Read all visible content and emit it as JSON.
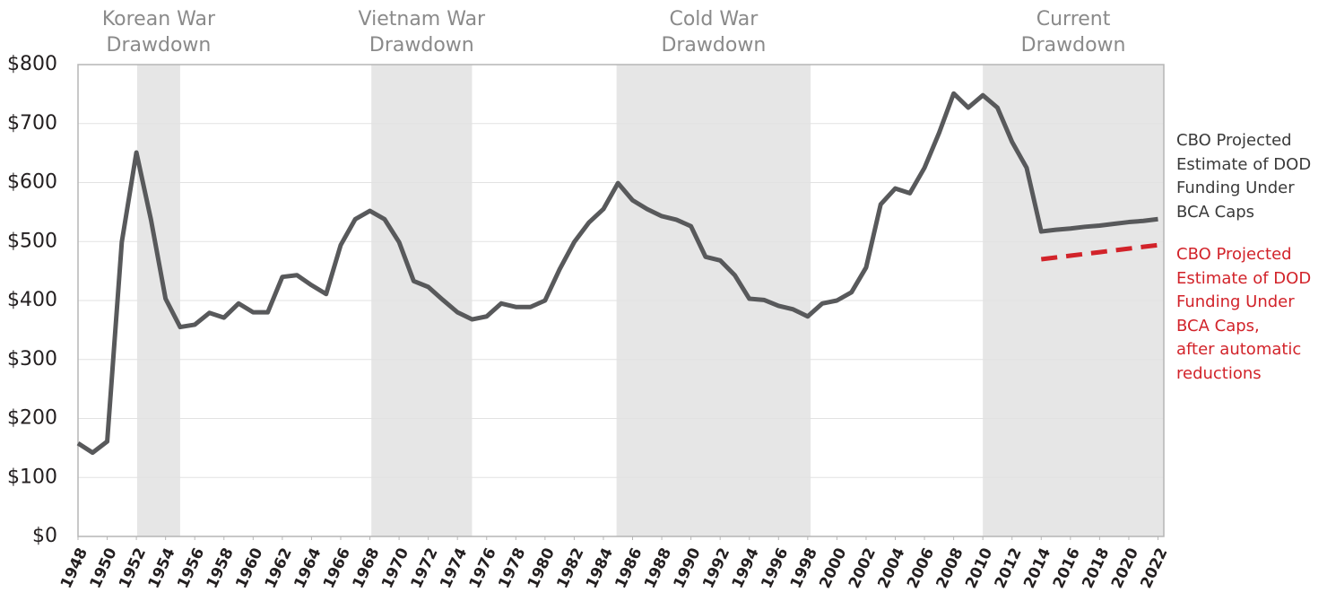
{
  "chart_data": {
    "type": "line",
    "xlim": [
      1948,
      2022.4
    ],
    "ylim": [
      0,
      800
    ],
    "yticks": [
      {
        "value": 0,
        "label": "$0"
      },
      {
        "value": 100,
        "label": "$100"
      },
      {
        "value": 200,
        "label": "$200"
      },
      {
        "value": 300,
        "label": "$300"
      },
      {
        "value": 400,
        "label": "$400"
      },
      {
        "value": 500,
        "label": "$500"
      },
      {
        "value": 600,
        "label": "$600"
      },
      {
        "value": 700,
        "label": "$700"
      },
      {
        "value": 800,
        "label": "$800"
      }
    ],
    "xticks": [
      1948,
      1950,
      1952,
      1954,
      1956,
      1958,
      1960,
      1962,
      1964,
      1966,
      1968,
      1970,
      1972,
      1974,
      1976,
      1978,
      1980,
      1982,
      1984,
      1986,
      1988,
      1990,
      1992,
      1994,
      1996,
      1998,
      2000,
      2002,
      2004,
      2006,
      2008,
      2010,
      2012,
      2014,
      2016,
      2018,
      2020,
      2022
    ],
    "grid": true,
    "shaded_regions": [
      {
        "label": "Korean War\nDrawdown",
        "range": [
          1952.05,
          1955
        ]
      },
      {
        "label": "Vietnam War\nDrawdown",
        "range": [
          1968.1,
          1975
        ]
      },
      {
        "label": "Cold War\nDrawdown",
        "range": [
          1984.9,
          1998.2
        ]
      },
      {
        "label": "Current\nDrawdown",
        "range": [
          2010,
          2022.4
        ]
      }
    ],
    "x": [
      1948,
      1949,
      1950,
      1951,
      1952,
      1953,
      1954,
      1955,
      1956,
      1957,
      1958,
      1959,
      1960,
      1961,
      1962,
      1963,
      1964,
      1965,
      1966,
      1967,
      1968,
      1969,
      1970,
      1971,
      1972,
      1973,
      1974,
      1975,
      1976,
      1977,
      1978,
      1979,
      1980,
      1981,
      1982,
      1983,
      1984,
      1985,
      1986,
      1987,
      1988,
      1989,
      1990,
      1991,
      1992,
      1993,
      1994,
      1995,
      1996,
      1997,
      1998,
      1999,
      2000,
      2001,
      2002,
      2003,
      2004,
      2005,
      2006,
      2007,
      2008,
      2009,
      2010,
      2011,
      2012,
      2013,
      2014,
      2015,
      2016,
      2017,
      2018,
      2019,
      2020,
      2021,
      2022
    ],
    "series": [
      {
        "name": "CBO Projected\nEstimate of DOD\nFunding Under\nBCA Caps",
        "color": "#58595b",
        "dashed": false,
        "values": [
          158,
          142,
          161,
          499,
          651,
          537,
          403,
          355,
          359,
          379,
          371,
          395,
          380,
          380,
          440,
          443,
          426,
          411,
          494,
          538,
          552,
          538,
          499,
          433,
          423,
          401,
          380,
          368,
          373,
          395,
          389,
          389,
          400,
          453,
          499,
          532,
          555,
          599,
          570,
          555,
          543,
          537,
          526,
          474,
          468,
          443,
          403,
          401,
          391,
          385,
          373,
          395,
          400,
          414,
          456,
          563,
          590,
          582,
          625,
          684,
          751,
          727,
          748,
          727,
          669,
          625,
          517,
          520,
          522,
          525,
          527,
          530,
          533,
          535,
          538
        ]
      },
      {
        "name": "CBO Projected\nEstimate of DOD\nFunding Under\nBCA Caps,\nafter automatic\nreductions",
        "color": "#d2232a",
        "dashed": true,
        "values": [
          null,
          null,
          null,
          null,
          null,
          null,
          null,
          null,
          null,
          null,
          null,
          null,
          null,
          null,
          null,
          null,
          null,
          null,
          null,
          null,
          null,
          null,
          null,
          null,
          null,
          null,
          null,
          null,
          null,
          null,
          null,
          null,
          null,
          null,
          null,
          null,
          null,
          null,
          null,
          null,
          null,
          null,
          null,
          null,
          null,
          null,
          null,
          null,
          null,
          null,
          null,
          null,
          null,
          null,
          null,
          null,
          null,
          null,
          null,
          null,
          null,
          null,
          null,
          null,
          null,
          null,
          470,
          473,
          476,
          479,
          482,
          485,
          488,
          491,
          494
        ]
      }
    ]
  }
}
